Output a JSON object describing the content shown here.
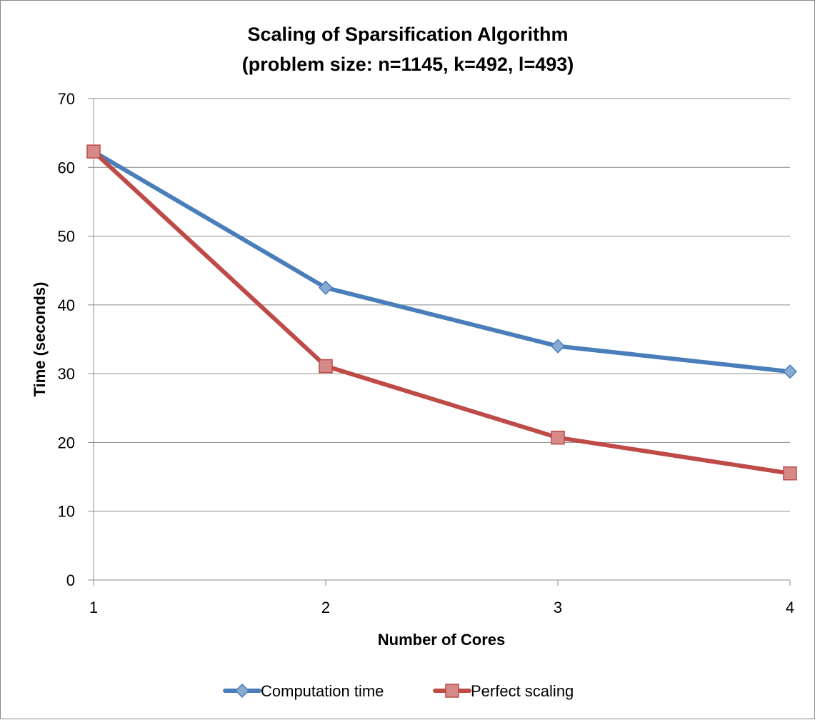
{
  "chart_data": {
    "type": "line",
    "title": "Scaling of Sparsification Algorithm",
    "subtitle": "(problem size: n=1145, k=492, l=493)",
    "xlabel": "Number of Cores",
    "ylabel": "Time (seconds)",
    "x": [
      1,
      2,
      3,
      4
    ],
    "x_ticks": [
      "1",
      "2",
      "3",
      "4"
    ],
    "ylim": [
      0,
      70
    ],
    "y_ticks": [
      "0",
      "10",
      "20",
      "30",
      "40",
      "50",
      "60",
      "70"
    ],
    "grid": "horizontal",
    "legend_position": "bottom",
    "series": [
      {
        "name": "Computation time",
        "values": [
          62.3,
          42.5,
          34.0,
          30.3
        ],
        "color": "#4a7ebb",
        "marker": "diamond"
      },
      {
        "name": "Perfect scaling",
        "values": [
          62.3,
          31.1,
          20.7,
          15.5
        ],
        "color": "#be4b48",
        "marker": "square"
      }
    ]
  }
}
